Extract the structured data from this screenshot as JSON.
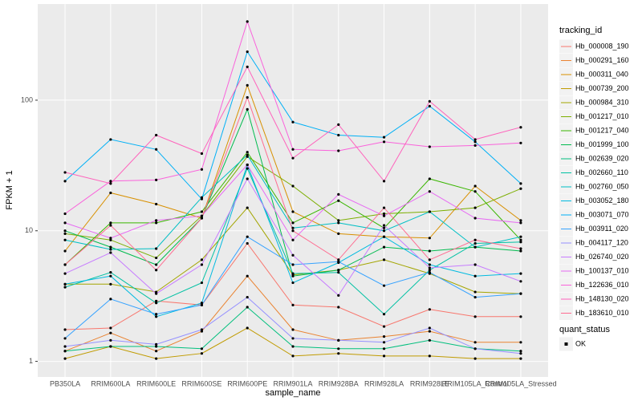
{
  "chart_data": {
    "type": "line",
    "x_label": "sample_name",
    "y_label": "FPKM + 1",
    "log_y": true,
    "grid": true,
    "categories": [
      "PB350LA",
      "RRIM600LA",
      "RRIM600LE",
      "RRIM600SE",
      "RRIM600PE",
      "RRIM901LA",
      "RRIM928BA",
      "RRIM928LA",
      "RRIM928LE",
      "RRIM105LA_Control",
      "RRIM105LA_Stressed"
    ],
    "ylim": [
      0.76,
      545
    ],
    "yticks": [
      1,
      10,
      100
    ],
    "legend_title": "tracking_id",
    "legend_position": "right",
    "point_color": "#000000",
    "shape_legend": {
      "title": "quant_status",
      "labels": [
        "OK"
      ]
    },
    "series": [
      {
        "name": "Hb_000008_190",
        "color": "#F8766D",
        "values": [
          1.75,
          1.8,
          2.9,
          2.7,
          8,
          2.7,
          2.6,
          1.85,
          2.5,
          2.2,
          2.2
        ]
      },
      {
        "name": "Hb_000291_160",
        "color": "#EA8331",
        "values": [
          1.2,
          1.65,
          1.2,
          1.7,
          4.5,
          1.75,
          1.45,
          1.55,
          1.7,
          1.4,
          1.4
        ]
      },
      {
        "name": "Hb_000311_040",
        "color": "#D89000",
        "values": [
          7,
          19.5,
          16,
          12.5,
          130,
          14,
          9.5,
          9,
          8.8,
          22,
          12
        ]
      },
      {
        "name": "Hb_000739_200",
        "color": "#C09B00",
        "values": [
          1.05,
          1.3,
          1.05,
          1.15,
          1.8,
          1.1,
          1.15,
          1.1,
          1.1,
          1.05,
          1.05
        ]
      },
      {
        "name": "Hb_000984_310",
        "color": "#A3A500",
        "values": [
          3.9,
          3.9,
          3.4,
          6,
          15,
          4.6,
          5,
          6,
          4.7,
          3.4,
          3.3
        ]
      },
      {
        "name": "Hb_001217_010",
        "color": "#7CAE00",
        "values": [
          9.5,
          8.5,
          6.2,
          13,
          37,
          22,
          12,
          13.5,
          14,
          15,
          21
        ]
      },
      {
        "name": "Hb_001217_040",
        "color": "#39B600",
        "values": [
          5.5,
          11.5,
          11.5,
          14,
          40,
          11.5,
          17,
          10.5,
          25,
          20,
          8.5
        ]
      },
      {
        "name": "Hb_001999_100",
        "color": "#00BB4E",
        "values": [
          10,
          7.5,
          5.5,
          12.5,
          85,
          4.5,
          5,
          7.5,
          7,
          7.5,
          7
        ]
      },
      {
        "name": "Hb_002639_020",
        "color": "#00BF7D",
        "values": [
          1.2,
          1.3,
          1.3,
          1.25,
          2.6,
          1.3,
          1.25,
          1.25,
          1.45,
          1.25,
          1.2
        ]
      },
      {
        "name": "Hb_002660_110",
        "color": "#00C1A3",
        "values": [
          3.7,
          4.8,
          2.8,
          4,
          30,
          4.7,
          4.8,
          2.3,
          5,
          8,
          8.2
        ]
      },
      {
        "name": "Hb_002760_050",
        "color": "#00BFC4",
        "values": [
          8.5,
          7.2,
          7.3,
          18,
          38,
          10.5,
          11.5,
          10,
          14,
          7.5,
          9
        ]
      },
      {
        "name": "Hb_003052_180",
        "color": "#00BAE0",
        "values": [
          3.9,
          4.5,
          2.2,
          2.8,
          32,
          4,
          5.7,
          9,
          5.5,
          4.5,
          4.7
        ]
      },
      {
        "name": "Hb_003071_070",
        "color": "#00B0F6",
        "values": [
          24,
          50,
          42,
          17.5,
          235,
          68,
          54,
          52,
          90,
          48,
          23
        ]
      },
      {
        "name": "Hb_003911_020",
        "color": "#35A2FF",
        "values": [
          1.5,
          3,
          2.3,
          2.7,
          9,
          5.5,
          5.8,
          3.8,
          4.8,
          3.1,
          3.3
        ]
      },
      {
        "name": "Hb_004117_120",
        "color": "#9590FF",
        "values": [
          1.3,
          1.45,
          1.35,
          1.75,
          3.1,
          1.5,
          1.45,
          1.4,
          1.8,
          1.25,
          1.15
        ]
      },
      {
        "name": "Hb_026740_020",
        "color": "#C77CFF",
        "values": [
          4.7,
          6.8,
          3.3,
          5.5,
          25,
          6.5,
          3.2,
          11,
          5.2,
          5.5,
          4.1
        ]
      },
      {
        "name": "Hb_100137_010",
        "color": "#E76BF3",
        "values": [
          11.5,
          8.8,
          12,
          13,
          32,
          8.5,
          19,
          13,
          20,
          12.5,
          11.5
        ]
      },
      {
        "name": "Hb_122636_010",
        "color": "#FA62DB",
        "values": [
          13.5,
          24,
          24.5,
          29.5,
          400,
          42,
          41,
          48,
          44,
          45,
          47
        ]
      },
      {
        "name": "Hb_148130_020",
        "color": "#FF62BC",
        "values": [
          28,
          23,
          54,
          39,
          180,
          36,
          65,
          24,
          98,
          50,
          62
        ]
      },
      {
        "name": "Hb_183610_010",
        "color": "#FF6C91",
        "values": [
          5.5,
          11,
          5,
          12.5,
          105,
          10,
          6,
          15,
          6,
          8.5,
          7.3
        ]
      }
    ]
  }
}
